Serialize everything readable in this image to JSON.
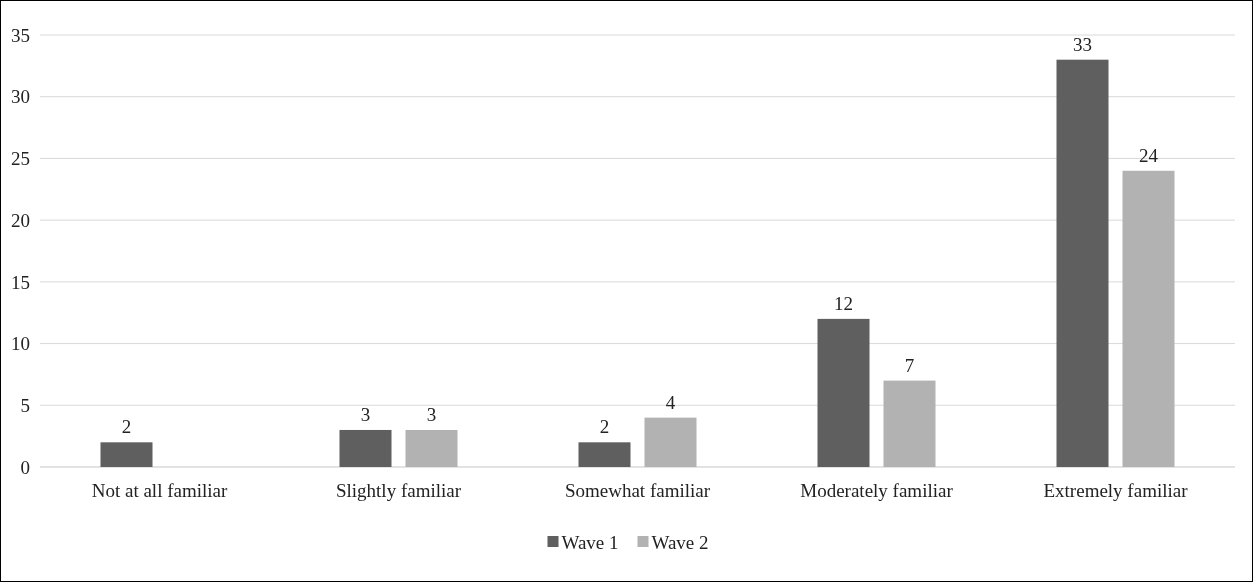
{
  "chart_data": {
    "type": "bar",
    "categories": [
      "Not at all familiar",
      "Slightly familiar",
      "Somewhat familiar",
      "Moderately familiar",
      "Extremely familiar"
    ],
    "series": [
      {
        "name": "Wave 1",
        "color": "#5f5f5f",
        "values": [
          2,
          3,
          2,
          12,
          33
        ]
      },
      {
        "name": "Wave 2",
        "color": "#b2b2b2",
        "values": [
          null,
          3,
          4,
          7,
          24
        ]
      }
    ],
    "ylim": [
      0,
      35
    ],
    "yticks": [
      0,
      5,
      10,
      15,
      20,
      25,
      30,
      35
    ],
    "grid": "y",
    "legend": "bottom",
    "data_labels": true
  }
}
